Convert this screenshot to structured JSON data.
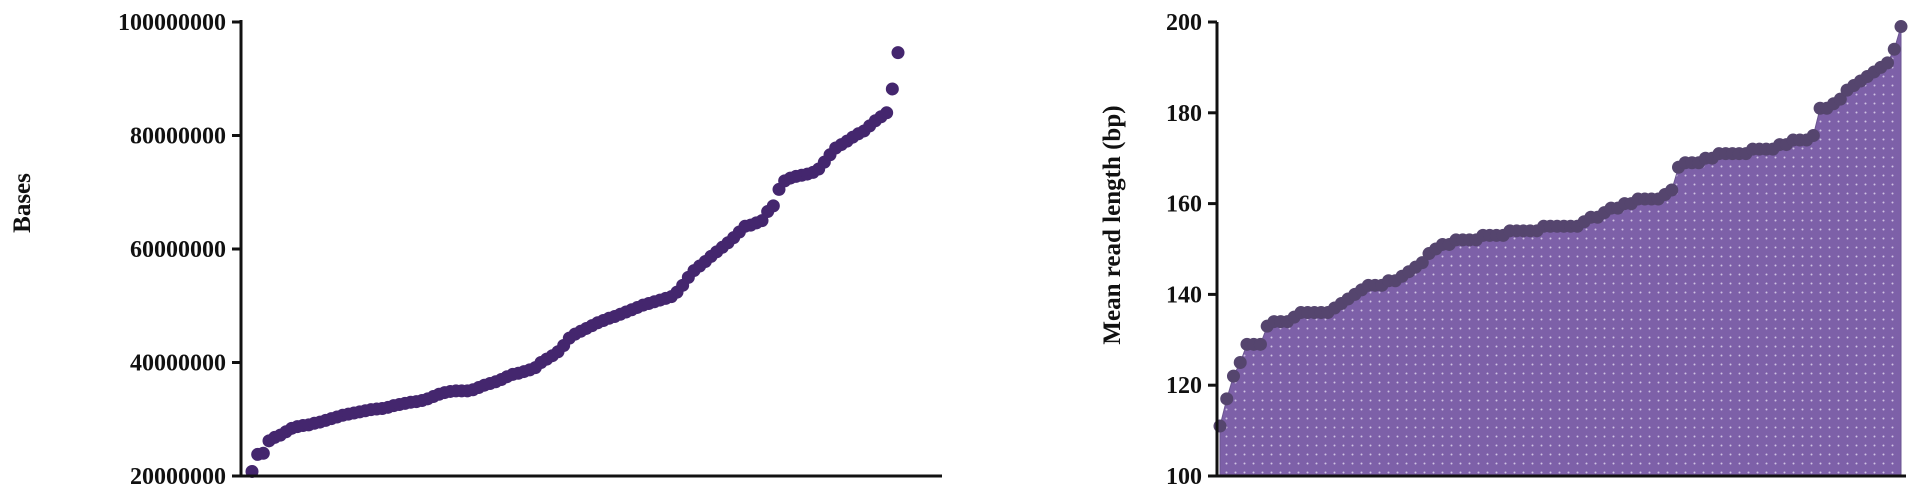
{
  "chart_data": [
    {
      "type": "scatter",
      "title": "",
      "xlabel": "",
      "ylabel": "Bases",
      "ylim": [
        20000000,
        100000000
      ],
      "yticks": [
        {
          "value": 20000000,
          "label": "20000000"
        },
        {
          "value": 40000000,
          "label": "40000000"
        },
        {
          "value": 60000000,
          "label": "60000000"
        },
        {
          "value": 80000000,
          "label": "80000000"
        },
        {
          "value": 100000000,
          "label": "100000000"
        }
      ],
      "grid": false,
      "x_ticks_shown": false,
      "point_color": "#44266e",
      "values": [
        20800000,
        23800000,
        24000000,
        26200000,
        26800000,
        27200000,
        27800000,
        28400000,
        28700000,
        28900000,
        29000000,
        29300000,
        29500000,
        29800000,
        30100000,
        30400000,
        30700000,
        30900000,
        31100000,
        31300000,
        31500000,
        31700000,
        31800000,
        31900000,
        32100000,
        32400000,
        32600000,
        32800000,
        33000000,
        33100000,
        33300000,
        33600000,
        34000000,
        34400000,
        34700000,
        34900000,
        35000000,
        35000000,
        35000000,
        35200000,
        35600000,
        36000000,
        36300000,
        36600000,
        37000000,
        37500000,
        37900000,
        38100000,
        38400000,
        38700000,
        39100000,
        40000000,
        40600000,
        41200000,
        41900000,
        43000000,
        44300000,
        45000000,
        45500000,
        46000000,
        46500000,
        47000000,
        47400000,
        47800000,
        48100000,
        48500000,
        48900000,
        49300000,
        49700000,
        50100000,
        50400000,
        50700000,
        51000000,
        51300000,
        51600000,
        52400000,
        53600000,
        55000000,
        56200000,
        57000000,
        57800000,
        58700000,
        59500000,
        60300000,
        61100000,
        62000000,
        63000000,
        64000000,
        64200000,
        64600000,
        65000000,
        66600000,
        67600000,
        70500000,
        72000000,
        72500000,
        72800000,
        73000000,
        73200000,
        73500000,
        74100000,
        75300000,
        76600000,
        77800000,
        78400000,
        79000000,
        79700000,
        80300000,
        80800000,
        81700000,
        82600000,
        83300000,
        84000000,
        88200000,
        94600000
      ]
    },
    {
      "type": "area",
      "title": "",
      "xlabel": "",
      "ylabel": "Mean read length (bp)",
      "ylim": [
        100,
        200
      ],
      "yticks": [
        {
          "value": 100,
          "label": "100"
        },
        {
          "value": 120,
          "label": "120"
        },
        {
          "value": 140,
          "label": "140"
        },
        {
          "value": 160,
          "label": "160"
        },
        {
          "value": 180,
          "label": "180"
        },
        {
          "value": 200,
          "label": "200"
        }
      ],
      "grid": false,
      "x_ticks_shown": false,
      "point_color": "#55456e",
      "fill_color": "#7d60a8",
      "values": [
        111,
        117,
        122,
        125,
        129,
        129,
        129,
        133,
        134,
        134,
        134,
        135,
        136,
        136,
        136,
        136,
        136,
        137,
        138,
        139,
        140,
        141,
        142,
        142,
        142,
        143,
        143,
        144,
        145,
        146,
        147,
        149,
        150,
        151,
        151,
        152,
        152,
        152,
        152,
        153,
        153,
        153,
        153,
        154,
        154,
        154,
        154,
        154,
        155,
        155,
        155,
        155,
        155,
        155,
        156,
        157,
        157,
        158,
        159,
        159,
        160,
        160,
        161,
        161,
        161,
        161,
        162,
        163,
        168,
        169,
        169,
        169,
        170,
        170,
        171,
        171,
        171,
        171,
        171,
        172,
        172,
        172,
        172,
        173,
        173,
        174,
        174,
        174,
        175,
        181,
        181,
        182,
        183,
        185,
        186,
        187,
        188,
        189,
        190,
        191,
        194,
        199
      ]
    }
  ]
}
